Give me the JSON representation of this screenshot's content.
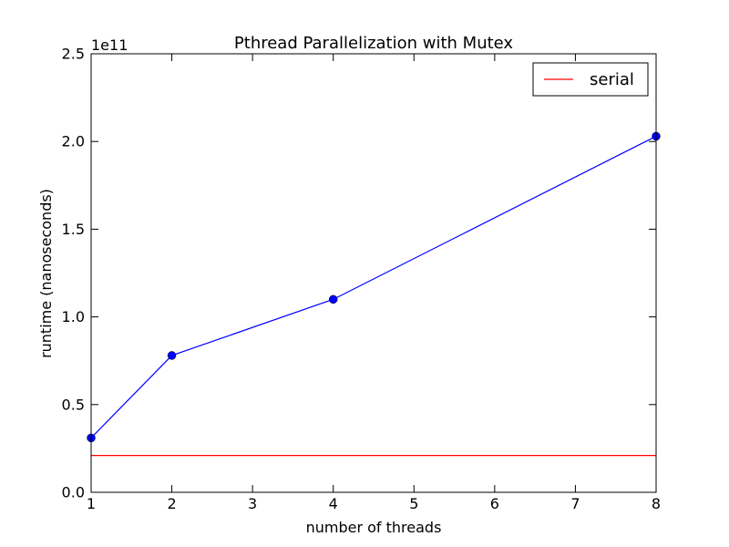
{
  "chart_data": {
    "type": "line",
    "title": "Pthread Parallelization with Mutex",
    "xlabel": "number of threads",
    "ylabel": "runtime (nanoseconds)",
    "y_offset_label": "1e11",
    "xlim": [
      1,
      8
    ],
    "ylim": [
      0,
      250000000000.0
    ],
    "x_ticks": [
      1,
      2,
      3,
      4,
      5,
      6,
      7,
      8
    ],
    "x_tick_labels": [
      "1",
      "2",
      "3",
      "4",
      "5",
      "6",
      "7",
      "8"
    ],
    "y_ticks": [
      0,
      50000000000.0,
      100000000000.0,
      150000000000.0,
      200000000000.0,
      250000000000.0
    ],
    "y_tick_labels": [
      "0.0",
      "0.5",
      "1.0",
      "1.5",
      "2.0",
      "2.5"
    ],
    "grid": false,
    "legend_position": "top-right",
    "legend": [
      "serial"
    ],
    "series": [
      {
        "color": "#0000ff",
        "marker": "circle",
        "x": [
          1,
          2,
          4,
          8
        ],
        "y": [
          31000000000.0,
          78000000000.0,
          110000000000.0,
          203000000000.0
        ]
      },
      {
        "name": "serial",
        "color": "#ff0000",
        "style": "horizontal-line",
        "y_value": 21000000000.0
      }
    ]
  }
}
